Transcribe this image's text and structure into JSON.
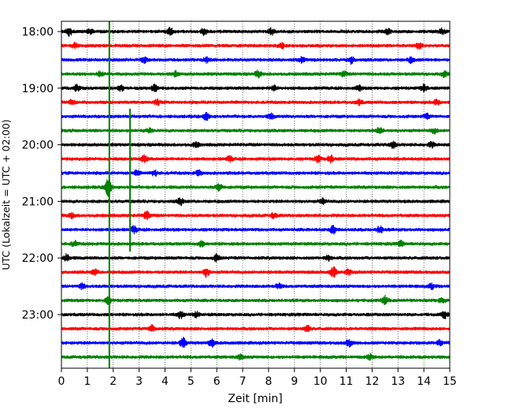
{
  "chart_data": {
    "type": "line",
    "title": "",
    "xlabel": "Zeit  [min]",
    "ylabel": "UTC (Lokalzeit = UTC + 02:00)",
    "xlim": [
      0,
      15
    ],
    "x_ticks": [
      0,
      1,
      2,
      3,
      4,
      5,
      6,
      7,
      8,
      9,
      10,
      11,
      12,
      13,
      14,
      15
    ],
    "x_tick_labels": [
      "0",
      "1",
      "2",
      "3",
      "4",
      "5",
      "6",
      "7",
      "8",
      "9",
      "10",
      "11",
      "12",
      "13",
      "14",
      "15"
    ],
    "y_tick_labels": [
      "18:00",
      "19:00",
      "20:00",
      "21:00",
      "22:00",
      "23:00"
    ],
    "y_tick_minutes": [
      0,
      60,
      120,
      180,
      240,
      300
    ],
    "trace_interval_min": 15,
    "start_time": "18:00",
    "grid": "vertical dotted lines at each minute",
    "trace_colors": [
      "#000000",
      "#ff0000",
      "#0000ff",
      "#008000"
    ],
    "traces": [
      {
        "start": "18:00",
        "color": "#000000",
        "events": [
          {
            "t": 0.3,
            "amp": 7
          },
          {
            "t": 1.1,
            "amp": 5
          },
          {
            "t": 4.2,
            "amp": 6
          },
          {
            "t": 5.5,
            "amp": 6
          },
          {
            "t": 8.1,
            "amp": 6
          },
          {
            "t": 12.6,
            "amp": 5
          },
          {
            "t": 14.7,
            "amp": 5
          }
        ]
      },
      {
        "start": "18:15",
        "color": "#ff0000",
        "events": [
          {
            "t": 0.5,
            "amp": 5
          },
          {
            "t": 8.5,
            "amp": 5
          },
          {
            "t": 13.8,
            "amp": 6
          }
        ]
      },
      {
        "start": "18:30",
        "color": "#0000ff",
        "events": [
          {
            "t": 3.2,
            "amp": 5
          },
          {
            "t": 5.6,
            "amp": 5
          },
          {
            "t": 9.3,
            "amp": 5
          },
          {
            "t": 11.2,
            "amp": 6
          },
          {
            "t": 13.5,
            "amp": 5
          }
        ]
      },
      {
        "start": "18:45",
        "color": "#008000",
        "events": [
          {
            "t": 1.5,
            "amp": 5
          },
          {
            "t": 4.4,
            "amp": 5
          },
          {
            "t": 7.6,
            "amp": 6
          },
          {
            "t": 10.9,
            "amp": 5
          },
          {
            "t": 14.8,
            "amp": 5
          }
        ]
      },
      {
        "start": "19:00",
        "color": "#000000",
        "events": [
          {
            "t": 0.6,
            "amp": 6
          },
          {
            "t": 2.3,
            "amp": 5
          },
          {
            "t": 3.6,
            "amp": 6
          },
          {
            "t": 8.2,
            "amp": 5
          },
          {
            "t": 11.5,
            "amp": 5
          },
          {
            "t": 14.0,
            "amp": 6
          }
        ]
      },
      {
        "start": "19:15",
        "color": "#ff0000",
        "events": [
          {
            "t": 0.4,
            "amp": 5
          },
          {
            "t": 3.7,
            "amp": 5
          },
          {
            "t": 11.5,
            "amp": 5
          },
          {
            "t": 14.5,
            "amp": 5
          }
        ]
      },
      {
        "start": "19:30",
        "color": "#0000ff",
        "events": [
          {
            "t": 5.6,
            "amp": 6
          },
          {
            "t": 8.1,
            "amp": 5
          },
          {
            "t": 14.1,
            "amp": 5
          }
        ]
      },
      {
        "start": "19:45",
        "color": "#008000",
        "events": [
          {
            "t": 3.4,
            "amp": 4
          },
          {
            "t": 12.3,
            "amp": 6
          },
          {
            "t": 14.4,
            "amp": 5
          }
        ]
      },
      {
        "start": "20:00",
        "color": "#000000",
        "events": [
          {
            "t": 5.2,
            "amp": 5
          },
          {
            "t": 12.8,
            "amp": 6
          },
          {
            "t": 14.3,
            "amp": 5
          }
        ]
      },
      {
        "start": "20:15",
        "color": "#ff0000",
        "events": [
          {
            "t": 3.2,
            "amp": 6
          },
          {
            "t": 6.5,
            "amp": 5
          },
          {
            "t": 9.9,
            "amp": 6
          },
          {
            "t": 10.4,
            "amp": 6
          }
        ]
      },
      {
        "start": "20:30",
        "color": "#0000ff",
        "events": [
          {
            "t": 2.9,
            "amp": 5
          },
          {
            "t": 3.6,
            "amp": 5
          },
          {
            "t": 5.3,
            "amp": 5
          }
        ]
      },
      {
        "start": "20:45",
        "color": "#008000",
        "events": [
          {
            "t": 1.8,
            "amp": 13
          },
          {
            "t": 6.1,
            "amp": 7
          }
        ]
      },
      {
        "start": "21:00",
        "color": "#000000",
        "events": [
          {
            "t": 4.6,
            "amp": 6
          },
          {
            "t": 10.1,
            "amp": 5
          }
        ]
      },
      {
        "start": "21:15",
        "color": "#ff0000",
        "events": [
          {
            "t": 0.4,
            "amp": 5
          },
          {
            "t": 3.3,
            "amp": 7
          },
          {
            "t": 8.2,
            "amp": 5
          }
        ]
      },
      {
        "start": "21:30",
        "color": "#0000ff",
        "events": [
          {
            "t": 2.8,
            "amp": 6
          },
          {
            "t": 10.5,
            "amp": 7
          },
          {
            "t": 12.3,
            "amp": 6
          }
        ]
      },
      {
        "start": "21:45",
        "color": "#008000",
        "events": [
          {
            "t": 0.5,
            "amp": 5
          },
          {
            "t": 5.4,
            "amp": 5
          },
          {
            "t": 13.1,
            "amp": 5
          }
        ]
      },
      {
        "start": "22:00",
        "color": "#000000",
        "events": [
          {
            "t": 0.2,
            "amp": 6
          },
          {
            "t": 6.0,
            "amp": 6
          },
          {
            "t": 10.3,
            "amp": 5
          }
        ]
      },
      {
        "start": "22:15",
        "color": "#ff0000",
        "events": [
          {
            "t": 1.3,
            "amp": 5
          },
          {
            "t": 5.6,
            "amp": 7
          },
          {
            "t": 10.5,
            "amp": 8
          },
          {
            "t": 11.1,
            "amp": 5
          }
        ]
      },
      {
        "start": "22:30",
        "color": "#0000ff",
        "events": [
          {
            "t": 0.8,
            "amp": 5
          },
          {
            "t": 8.4,
            "amp": 5
          },
          {
            "t": 14.3,
            "amp": 5
          }
        ]
      },
      {
        "start": "22:45",
        "color": "#008000",
        "events": [
          {
            "t": 1.8,
            "amp": 6
          },
          {
            "t": 12.5,
            "amp": 7
          },
          {
            "t": 14.7,
            "amp": 5
          }
        ]
      },
      {
        "start": "23:00",
        "color": "#000000",
        "events": [
          {
            "t": 4.6,
            "amp": 6
          },
          {
            "t": 5.2,
            "amp": 5
          },
          {
            "t": 14.8,
            "amp": 6
          }
        ]
      },
      {
        "start": "23:15",
        "color": "#ff0000",
        "events": [
          {
            "t": 3.5,
            "amp": 6
          },
          {
            "t": 9.5,
            "amp": 6
          }
        ]
      },
      {
        "start": "23:30",
        "color": "#0000ff",
        "events": [
          {
            "t": 4.7,
            "amp": 8
          },
          {
            "t": 5.8,
            "amp": 6
          },
          {
            "t": 11.1,
            "amp": 6
          },
          {
            "t": 14.6,
            "amp": 5
          }
        ]
      },
      {
        "start": "23:45",
        "color": "#008000",
        "events": [
          {
            "t": 6.9,
            "amp": 5
          },
          {
            "t": 11.9,
            "amp": 5
          }
        ]
      }
    ],
    "spikes": [
      {
        "t": 1.85,
        "color": "#008000",
        "from_trace": 0,
        "to_trace": 23,
        "note": "vertical green line spanning all traces"
      },
      {
        "t": 2.65,
        "color": "#008000",
        "from_trace": 6,
        "to_trace": 15,
        "note": "vertical green line"
      }
    ]
  }
}
